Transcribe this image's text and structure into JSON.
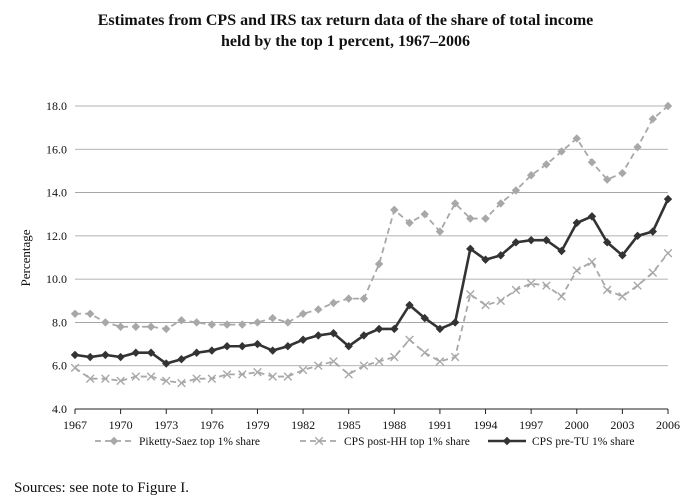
{
  "title_line1": "Estimates from CPS and IRS tax return data of the share of total income",
  "title_line2": "held by the top 1 percent, 1967–2006",
  "source": "Sources: see note to Figure I.",
  "chart_data": {
    "type": "line",
    "title": "Estimates from CPS and IRS tax return data of the share of total income held by the top 1 percent, 1967–2006",
    "ylabel": "Percentage",
    "xlabel": "",
    "xlim": [
      1967,
      2006
    ],
    "ylim": [
      4.0,
      18.0
    ],
    "grid": true,
    "legend_position": "bottom",
    "x_ticks": [
      1967,
      1970,
      1973,
      1976,
      1979,
      1982,
      1985,
      1988,
      1991,
      1994,
      1997,
      2000,
      2003,
      2006
    ],
    "y_ticks": [
      "4.0",
      "6.0",
      "8.0",
      "10.0",
      "12.0",
      "14.0",
      "16.0",
      "18.0"
    ],
    "x": [
      1967,
      1968,
      1969,
      1970,
      1971,
      1972,
      1973,
      1974,
      1975,
      1976,
      1977,
      1978,
      1979,
      1980,
      1981,
      1982,
      1983,
      1984,
      1985,
      1986,
      1987,
      1988,
      1989,
      1990,
      1991,
      1992,
      1993,
      1994,
      1995,
      1996,
      1997,
      1998,
      1999,
      2000,
      2001,
      2002,
      2003,
      2004,
      2005,
      2006
    ],
    "series": [
      {
        "name": "Piketty-Saez top 1% share",
        "color": "#a8a8a8",
        "dash": true,
        "marker": "diamond",
        "values": [
          8.4,
          8.4,
          8.0,
          7.8,
          7.8,
          7.8,
          7.7,
          8.1,
          8.0,
          7.9,
          7.9,
          7.9,
          8.0,
          8.2,
          8.0,
          8.4,
          8.6,
          8.9,
          9.1,
          9.1,
          10.7,
          13.2,
          12.6,
          13.0,
          12.2,
          13.5,
          12.8,
          12.8,
          13.5,
          14.1,
          14.8,
          15.3,
          15.9,
          16.5,
          15.4,
          14.6,
          14.9,
          16.1,
          17.4,
          18.0
        ]
      },
      {
        "name": "CPS post-HH top 1% share",
        "color": "#a8a8a8",
        "dash": true,
        "marker": "x",
        "values": [
          5.9,
          5.4,
          5.4,
          5.3,
          5.5,
          5.5,
          5.3,
          5.2,
          5.4,
          5.4,
          5.6,
          5.6,
          5.7,
          5.5,
          5.5,
          5.8,
          6.0,
          6.2,
          5.6,
          6.0,
          6.2,
          6.4,
          7.2,
          6.6,
          6.2,
          6.4,
          9.3,
          8.8,
          9.0,
          9.5,
          9.8,
          9.7,
          9.2,
          10.4,
          10.8,
          9.5,
          9.2,
          9.7,
          10.3,
          11.2
        ]
      },
      {
        "name": "CPS pre-TU 1% share",
        "color": "#333333",
        "dash": false,
        "marker": "diamond",
        "values": [
          6.5,
          6.4,
          6.5,
          6.4,
          6.6,
          6.6,
          6.1,
          6.3,
          6.6,
          6.7,
          6.9,
          6.9,
          7.0,
          6.7,
          6.9,
          7.2,
          7.4,
          7.5,
          6.9,
          7.4,
          7.7,
          7.7,
          8.8,
          8.2,
          7.7,
          8.0,
          11.4,
          10.9,
          11.1,
          11.7,
          11.8,
          11.8,
          11.3,
          12.6,
          12.9,
          11.7,
          11.1,
          12.0,
          12.2,
          13.7
        ]
      }
    ]
  }
}
